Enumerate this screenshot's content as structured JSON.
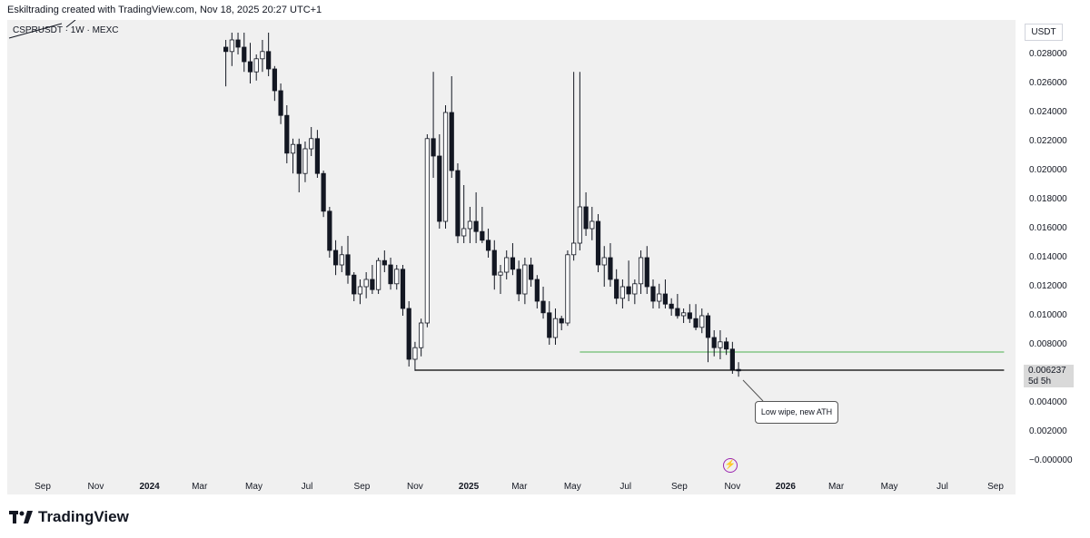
{
  "header": {
    "text": "Eskiltrading created with TradingView.com, Nov 18, 2025 20:27 UTC+1"
  },
  "symbol": {
    "text": "CSPRUSDT · 1W · MEXC"
  },
  "axis": {
    "unit": "USDT"
  },
  "price_tag": {
    "value": "0.006237",
    "countdown": "5d 5h"
  },
  "annotation": {
    "text": "Low wipe, new ATH"
  },
  "footer": {
    "brand": "TradingView",
    "logo_icon": "tradingview-logo-icon"
  },
  "colors": {
    "line_black": "#000000",
    "line_green": "#4caf50",
    "candle": "#131722",
    "bolt": "#9c27b0"
  },
  "chart_data": {
    "type": "candlestick",
    "title": "CSPRUSDT · 1W · MEXC",
    "ylabel": "USDT",
    "ylim": [
      -0.0015,
      0.03
    ],
    "y_ticks": [
      "0.028000",
      "0.026000",
      "0.024000",
      "0.022000",
      "0.020000",
      "0.018000",
      "0.016000",
      "0.014000",
      "0.012000",
      "0.010000",
      "0.008000",
      "0.006000",
      "0.004000",
      "0.002000",
      "−0.000000"
    ],
    "y_tick_values": [
      0.028,
      0.026,
      0.024,
      0.022,
      0.02,
      0.018,
      0.016,
      0.014,
      0.012,
      0.01,
      0.008,
      0.006,
      0.004,
      0.002,
      0.0
    ],
    "x_ticks": [
      {
        "label": "Sep",
        "week": 0,
        "bold": false
      },
      {
        "label": "Nov",
        "week": 8.7,
        "bold": false
      },
      {
        "label": "2024",
        "week": 17.5,
        "bold": true
      },
      {
        "label": "Mar",
        "week": 25.7,
        "bold": false
      },
      {
        "label": "May",
        "week": 34.6,
        "bold": false
      },
      {
        "label": "Jul",
        "week": 43.3,
        "bold": false
      },
      {
        "label": "Sep",
        "week": 52.3,
        "bold": false
      },
      {
        "label": "Nov",
        "week": 61,
        "bold": false
      },
      {
        "label": "2025",
        "week": 69.8,
        "bold": true
      },
      {
        "label": "Mar",
        "week": 78.1,
        "bold": false
      },
      {
        "label": "May",
        "week": 86.8,
        "bold": false
      },
      {
        "label": "Jul",
        "week": 95.5,
        "bold": false
      },
      {
        "label": "Sep",
        "week": 104.3,
        "bold": false
      },
      {
        "label": "Nov",
        "week": 113,
        "bold": false
      },
      {
        "label": "2026",
        "week": 121.7,
        "bold": true
      },
      {
        "label": "Mar",
        "week": 130,
        "bold": false
      },
      {
        "label": "May",
        "week": 138.7,
        "bold": false
      },
      {
        "label": "Jul",
        "week": 147.4,
        "bold": false
      },
      {
        "label": "Sep",
        "week": 156.1,
        "bold": false
      }
    ],
    "candles_start_week": 30,
    "candles": [
      [
        0.0285,
        0.029,
        0.0258,
        0.0282
      ],
      [
        0.0282,
        0.0295,
        0.0272,
        0.029
      ],
      [
        0.029,
        0.0295,
        0.028,
        0.0285
      ],
      [
        0.0285,
        0.0295,
        0.0268,
        0.0275
      ],
      [
        0.0275,
        0.0288,
        0.026,
        0.0268
      ],
      [
        0.0268,
        0.028,
        0.0262,
        0.0277
      ],
      [
        0.0277,
        0.029,
        0.0268,
        0.0282
      ],
      [
        0.0282,
        0.0295,
        0.0265,
        0.027
      ],
      [
        0.027,
        0.0272,
        0.0248,
        0.0255
      ],
      [
        0.0255,
        0.026,
        0.0232,
        0.0238
      ],
      [
        0.0238,
        0.0245,
        0.0205,
        0.0212
      ],
      [
        0.0212,
        0.0222,
        0.0198,
        0.0218
      ],
      [
        0.0218,
        0.0222,
        0.0185,
        0.0198
      ],
      [
        0.0198,
        0.022,
        0.0192,
        0.0215
      ],
      [
        0.0215,
        0.023,
        0.021,
        0.0222
      ],
      [
        0.0222,
        0.0228,
        0.0195,
        0.0198
      ],
      [
        0.0198,
        0.02,
        0.0168,
        0.0172
      ],
      [
        0.0172,
        0.0175,
        0.014,
        0.0145
      ],
      [
        0.0145,
        0.0152,
        0.0128,
        0.0135
      ],
      [
        0.0135,
        0.0148,
        0.013,
        0.0142
      ],
      [
        0.0142,
        0.0155,
        0.0122,
        0.0128
      ],
      [
        0.0128,
        0.013,
        0.011,
        0.0115
      ],
      [
        0.0115,
        0.0125,
        0.0108,
        0.012
      ],
      [
        0.012,
        0.013,
        0.0112,
        0.0125
      ],
      [
        0.0125,
        0.0135,
        0.0115,
        0.0118
      ],
      [
        0.0118,
        0.014,
        0.0115,
        0.0138
      ],
      [
        0.0138,
        0.0145,
        0.013,
        0.0135
      ],
      [
        0.0135,
        0.014,
        0.0118,
        0.0122
      ],
      [
        0.0122,
        0.0135,
        0.0118,
        0.0132
      ],
      [
        0.0132,
        0.0135,
        0.01,
        0.0105
      ],
      [
        0.0105,
        0.011,
        0.0065,
        0.007
      ],
      [
        0.007,
        0.0082,
        0.0062,
        0.0078
      ],
      [
        0.0078,
        0.0098,
        0.0072,
        0.0095
      ],
      [
        0.0095,
        0.0225,
        0.0092,
        0.0222
      ],
      [
        0.0222,
        0.0268,
        0.0195,
        0.021
      ],
      [
        0.021,
        0.0225,
        0.016,
        0.0165
      ],
      [
        0.0165,
        0.0245,
        0.016,
        0.024
      ],
      [
        0.024,
        0.0265,
        0.0195,
        0.02
      ],
      [
        0.02,
        0.0205,
        0.015,
        0.0155
      ],
      [
        0.0155,
        0.019,
        0.015,
        0.016
      ],
      [
        0.016,
        0.0175,
        0.015,
        0.0165
      ],
      [
        0.0165,
        0.0185,
        0.015,
        0.0158
      ],
      [
        0.0158,
        0.0175,
        0.015,
        0.0152
      ],
      [
        0.0152,
        0.016,
        0.014,
        0.0145
      ],
      [
        0.0145,
        0.0152,
        0.0118,
        0.0128
      ],
      [
        0.0128,
        0.0135,
        0.0115,
        0.013
      ],
      [
        0.013,
        0.0145,
        0.0125,
        0.014
      ],
      [
        0.014,
        0.015,
        0.0128,
        0.0132
      ],
      [
        0.0132,
        0.0138,
        0.011,
        0.0115
      ],
      [
        0.0115,
        0.014,
        0.0108,
        0.0135
      ],
      [
        0.0135,
        0.014,
        0.012,
        0.0125
      ],
      [
        0.0125,
        0.0128,
        0.0105,
        0.011
      ],
      [
        0.011,
        0.012,
        0.0098,
        0.0102
      ],
      [
        0.0102,
        0.011,
        0.008,
        0.0085
      ],
      [
        0.0085,
        0.0105,
        0.008,
        0.0098
      ],
      [
        0.0098,
        0.01,
        0.009,
        0.0095
      ],
      [
        0.0095,
        0.0145,
        0.0093,
        0.0142
      ],
      [
        0.0142,
        0.0268,
        0.0138,
        0.015
      ],
      [
        0.015,
        0.0268,
        0.0145,
        0.0175
      ],
      [
        0.0175,
        0.0185,
        0.0155,
        0.016
      ],
      [
        0.016,
        0.0175,
        0.0152,
        0.0165
      ],
      [
        0.0165,
        0.017,
        0.013,
        0.0135
      ],
      [
        0.0135,
        0.0148,
        0.012,
        0.014
      ],
      [
        0.014,
        0.015,
        0.012,
        0.0125
      ],
      [
        0.0125,
        0.0132,
        0.0108,
        0.0112
      ],
      [
        0.0112,
        0.0125,
        0.0105,
        0.012
      ],
      [
        0.012,
        0.0138,
        0.011,
        0.0115
      ],
      [
        0.0115,
        0.0125,
        0.0108,
        0.0122
      ],
      [
        0.0122,
        0.0145,
        0.0115,
        0.014
      ],
      [
        0.014,
        0.0148,
        0.0115,
        0.012
      ],
      [
        0.012,
        0.0125,
        0.0105,
        0.011
      ],
      [
        0.011,
        0.0122,
        0.0105,
        0.0115
      ],
      [
        0.0115,
        0.0125,
        0.0105,
        0.0108
      ],
      [
        0.0108,
        0.0112,
        0.01,
        0.0105
      ],
      [
        0.0105,
        0.0115,
        0.0098,
        0.01
      ],
      [
        0.01,
        0.0105,
        0.0095,
        0.0102
      ],
      [
        0.0102,
        0.0108,
        0.0095,
        0.0098
      ],
      [
        0.0098,
        0.0108,
        0.009,
        0.0092
      ],
      [
        0.0092,
        0.0105,
        0.0088,
        0.01
      ],
      [
        0.01,
        0.0102,
        0.0068,
        0.0085
      ],
      [
        0.0085,
        0.009,
        0.0072,
        0.0078
      ],
      [
        0.0078,
        0.009,
        0.007,
        0.0082
      ],
      [
        0.0082,
        0.0085,
        0.0073,
        0.0077
      ],
      [
        0.0077,
        0.0082,
        0.006,
        0.0063
      ],
      [
        0.0063,
        0.0068,
        0.0058,
        0.0062
      ]
    ],
    "levels": [
      {
        "name": "support-line",
        "value": 0.00625,
        "from_week": 61,
        "to_week": 157.5,
        "color": "#000000"
      },
      {
        "name": "resistance-line",
        "value": 0.0075,
        "from_week": 88,
        "to_week": 157.5,
        "color": "#4caf50"
      }
    ],
    "last_price": 0.006237
  }
}
